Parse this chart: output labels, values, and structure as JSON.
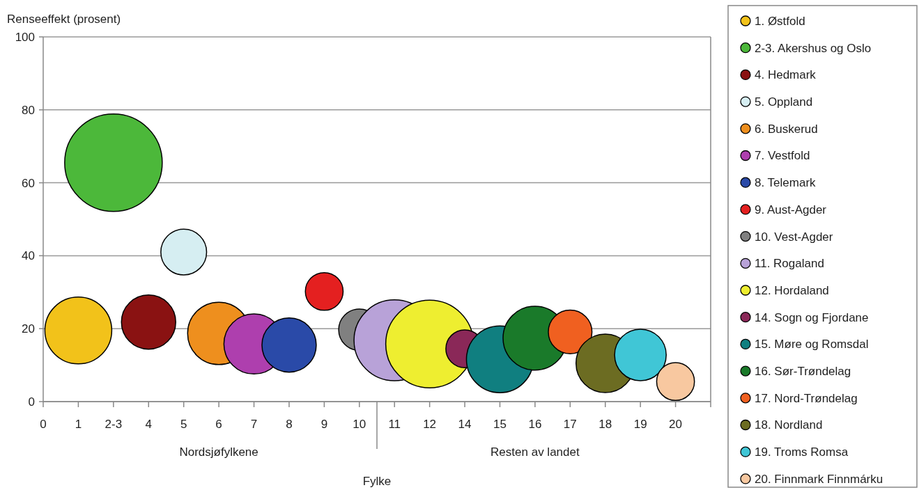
{
  "chart_data": {
    "type": "bubble",
    "xlabel": "Fylke",
    "ylabel": "Renseeffekt (prosent)",
    "categories": [
      "0",
      "1",
      "2-3",
      "4",
      "5",
      "6",
      "7",
      "8",
      "9",
      "10",
      "11",
      "12",
      "14",
      "15",
      "16",
      "17",
      "18",
      "19",
      "20",
      null
    ],
    "ylim": [
      0,
      100
    ],
    "yticks": [
      0,
      20,
      40,
      60,
      80,
      100
    ],
    "grid": "y",
    "legend": "right",
    "annotations": [
      "Nordsjøfylkene",
      "Resten av landet"
    ],
    "series": [
      {
        "name": "1. Østfold",
        "color": "#f2c21a",
        "values": [
          null,
          19.5,
          null,
          null,
          null,
          null,
          null,
          null,
          null,
          null,
          null,
          null,
          null,
          null,
          null,
          null,
          null,
          null,
          null,
          null
        ],
        "sizes": [
          null,
          0.47,
          null,
          null,
          null,
          null,
          null,
          null,
          null,
          null,
          null,
          null,
          null,
          null,
          null,
          null,
          null,
          null,
          null,
          null
        ]
      },
      {
        "name": "2-3. Akershus og Oslo",
        "color": "#4cb83a",
        "values": [
          null,
          null,
          65.5,
          null,
          null,
          null,
          null,
          null,
          null,
          null,
          null,
          null,
          null,
          null,
          null,
          null,
          null,
          null,
          null,
          null
        ],
        "sizes": [
          null,
          null,
          1,
          null,
          null,
          null,
          null,
          null,
          null,
          null,
          null,
          null,
          null,
          null,
          null,
          null,
          null,
          null,
          null,
          null
        ]
      },
      {
        "name": "4. Hedmark",
        "color": "#8a1212",
        "values": [
          null,
          null,
          null,
          21.8,
          null,
          null,
          null,
          null,
          null,
          null,
          null,
          null,
          null,
          null,
          null,
          null,
          null,
          null,
          null,
          null
        ],
        "sizes": [
          null,
          null,
          null,
          0.31,
          null,
          null,
          null,
          null,
          null,
          null,
          null,
          null,
          null,
          null,
          null,
          null,
          null,
          null,
          null,
          null
        ]
      },
      {
        "name": "5. Oppland",
        "color": "#d6eef2",
        "values": [
          null,
          null,
          null,
          null,
          41,
          null,
          null,
          null,
          null,
          null,
          null,
          null,
          null,
          null,
          null,
          null,
          null,
          null,
          null,
          null
        ],
        "sizes": [
          null,
          null,
          null,
          null,
          0.22,
          null,
          null,
          null,
          null,
          null,
          null,
          null,
          null,
          null,
          null,
          null,
          null,
          null,
          null,
          null
        ]
      },
      {
        "name": "6. Buskerud",
        "color": "#ee8f1e",
        "values": [
          null,
          null,
          null,
          null,
          null,
          18.7,
          null,
          null,
          null,
          null,
          null,
          null,
          null,
          null,
          null,
          null,
          null,
          null,
          null,
          null
        ],
        "sizes": [
          null,
          null,
          null,
          null,
          null,
          0.41,
          null,
          null,
          null,
          null,
          null,
          null,
          null,
          null,
          null,
          null,
          null,
          null,
          null,
          null
        ]
      },
      {
        "name": "7. Vestfold",
        "color": "#ae3fae",
        "values": [
          null,
          null,
          null,
          null,
          null,
          null,
          15.8,
          null,
          null,
          null,
          null,
          null,
          null,
          null,
          null,
          null,
          null,
          null,
          null,
          null
        ],
        "sizes": [
          null,
          null,
          null,
          null,
          null,
          null,
          0.38,
          null,
          null,
          null,
          null,
          null,
          null,
          null,
          null,
          null,
          null,
          null,
          null,
          null
        ]
      },
      {
        "name": "8. Telemark",
        "color": "#2a4aa8",
        "values": [
          null,
          null,
          null,
          null,
          null,
          null,
          null,
          15.5,
          null,
          null,
          null,
          null,
          null,
          null,
          null,
          null,
          null,
          null,
          null,
          null
        ],
        "sizes": [
          null,
          null,
          null,
          null,
          null,
          null,
          null,
          0.31,
          null,
          null,
          null,
          null,
          null,
          null,
          null,
          null,
          null,
          null,
          null,
          null
        ]
      },
      {
        "name": "9. Aust-Agder",
        "color": "#e42020",
        "values": [
          null,
          null,
          null,
          null,
          null,
          null,
          null,
          null,
          30.2,
          null,
          null,
          null,
          null,
          null,
          null,
          null,
          null,
          null,
          null,
          null
        ],
        "sizes": [
          null,
          null,
          null,
          null,
          null,
          null,
          null,
          null,
          0.15,
          null,
          null,
          null,
          null,
          null,
          null,
          null,
          null,
          null,
          null,
          null
        ]
      },
      {
        "name": "10. Vest-Agder",
        "color": "#808080",
        "values": [
          null,
          null,
          null,
          null,
          null,
          null,
          null,
          null,
          null,
          19.7,
          null,
          null,
          null,
          null,
          null,
          null,
          null,
          null,
          null,
          null
        ],
        "sizes": [
          null,
          null,
          null,
          null,
          null,
          null,
          null,
          null,
          null,
          0.18,
          null,
          null,
          null,
          null,
          null,
          null,
          null,
          null,
          null,
          null
        ]
      },
      {
        "name": "11. Rogaland",
        "color": "#b8a2d8",
        "values": [
          null,
          null,
          null,
          null,
          null,
          null,
          null,
          null,
          null,
          null,
          16.8,
          null,
          null,
          null,
          null,
          null,
          null,
          null,
          null,
          null
        ],
        "sizes": [
          null,
          null,
          null,
          null,
          null,
          null,
          null,
          null,
          null,
          null,
          0.69,
          null,
          null,
          null,
          null,
          null,
          null,
          null,
          null,
          null
        ]
      },
      {
        "name": "12. Hordaland",
        "color": "#eeee30",
        "values": [
          null,
          null,
          null,
          null,
          null,
          null,
          null,
          null,
          null,
          null,
          null,
          15.8,
          null,
          null,
          null,
          null,
          null,
          null,
          null,
          null
        ],
        "sizes": [
          null,
          null,
          null,
          null,
          null,
          null,
          null,
          null,
          null,
          null,
          null,
          0.81,
          null,
          null,
          null,
          null,
          null,
          null,
          null,
          null
        ]
      },
      {
        "name": "14. Sogn og Fjordane",
        "color": "#8a2858",
        "values": [
          null,
          null,
          null,
          null,
          null,
          null,
          null,
          null,
          null,
          null,
          null,
          null,
          14.5,
          null,
          null,
          null,
          null,
          null,
          null,
          null
        ],
        "sizes": [
          null,
          null,
          null,
          null,
          null,
          null,
          null,
          null,
          null,
          null,
          null,
          null,
          0.15,
          null,
          null,
          null,
          null,
          null,
          null,
          null
        ]
      },
      {
        "name": "15. Møre og Romsdal",
        "color": "#107f80",
        "values": [
          null,
          null,
          null,
          null,
          null,
          null,
          null,
          null,
          null,
          null,
          null,
          null,
          null,
          11.6,
          null,
          null,
          null,
          null,
          null,
          null
        ],
        "sizes": [
          null,
          null,
          null,
          null,
          null,
          null,
          null,
          null,
          null,
          null,
          null,
          null,
          null,
          0.47,
          null,
          null,
          null,
          null,
          null,
          null
        ]
      },
      {
        "name": "16. Sør-Trøndelag",
        "color": "#1a7a2a",
        "values": [
          null,
          null,
          null,
          null,
          null,
          null,
          null,
          null,
          null,
          null,
          null,
          null,
          null,
          null,
          17.4,
          null,
          null,
          null,
          null,
          null
        ],
        "sizes": [
          null,
          null,
          null,
          null,
          null,
          null,
          null,
          null,
          null,
          null,
          null,
          null,
          null,
          null,
          0.43,
          null,
          null,
          null,
          null,
          null
        ]
      },
      {
        "name": "17. Nord-Trøndelag",
        "color": "#f06020",
        "values": [
          null,
          null,
          null,
          null,
          null,
          null,
          null,
          null,
          null,
          null,
          null,
          null,
          null,
          null,
          null,
          19.1,
          null,
          null,
          null,
          null
        ],
        "sizes": [
          null,
          null,
          null,
          null,
          null,
          null,
          null,
          null,
          null,
          null,
          null,
          null,
          null,
          null,
          null,
          0.2,
          null,
          null,
          null,
          null
        ]
      },
      {
        "name": "18. Nordland",
        "color": "#6c6c22",
        "values": [
          null,
          null,
          null,
          null,
          null,
          null,
          null,
          null,
          null,
          null,
          null,
          null,
          null,
          null,
          null,
          null,
          10.5,
          null,
          null,
          null
        ],
        "sizes": [
          null,
          null,
          null,
          null,
          null,
          null,
          null,
          null,
          null,
          null,
          null,
          null,
          null,
          null,
          null,
          null,
          0.36,
          null,
          null,
          null
        ]
      },
      {
        "name": "19. Troms Romsa",
        "color": "#40c6d6",
        "values": [
          null,
          null,
          null,
          null,
          null,
          null,
          null,
          null,
          null,
          null,
          null,
          null,
          null,
          null,
          null,
          null,
          null,
          12.8,
          null,
          null
        ],
        "sizes": [
          null,
          null,
          null,
          null,
          null,
          null,
          null,
          null,
          null,
          null,
          null,
          null,
          null,
          null,
          null,
          null,
          null,
          0.28,
          null,
          null
        ]
      },
      {
        "name": "20. Finnmark Finnmárku",
        "color": "#f8c8a0",
        "values": [
          null,
          null,
          null,
          null,
          null,
          null,
          null,
          null,
          null,
          null,
          null,
          null,
          null,
          null,
          null,
          null,
          null,
          null,
          5.5,
          null
        ],
        "sizes": [
          null,
          null,
          null,
          null,
          null,
          null,
          null,
          null,
          null,
          null,
          null,
          null,
          null,
          null,
          null,
          null,
          null,
          null,
          0.15,
          null
        ]
      }
    ]
  }
}
